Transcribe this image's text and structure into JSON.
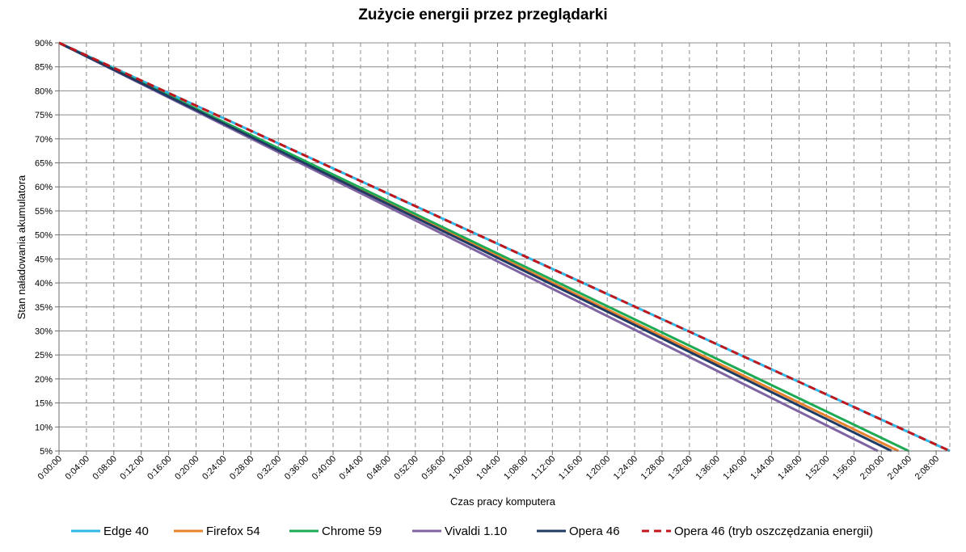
{
  "chart_data": {
    "type": "line",
    "title": "Zużycie energii przez przeglądarki",
    "xlabel": "Czas pracy komputera",
    "ylabel": "Stan naładowania akumulatora",
    "xlim_minutes": [
      0,
      130
    ],
    "ylim": [
      5,
      90
    ],
    "x_tick_labels": [
      "0:00:00",
      "0:04:00",
      "0:08:00",
      "0:12:00",
      "0:16:00",
      "0:20:00",
      "0:24:00",
      "0:28:00",
      "0:32:00",
      "0:36:00",
      "0:40:00",
      "0:44:00",
      "0:48:00",
      "0:52:00",
      "0:56:00",
      "1:00:00",
      "1:04:00",
      "1:08:00",
      "1:12:00",
      "1:16:00",
      "1:20:00",
      "1:24:00",
      "1:28:00",
      "1:32:00",
      "1:36:00",
      "1:40:00",
      "1:44:00",
      "1:48:00",
      "1:52:00",
      "1:56:00",
      "2:00:00",
      "2:04:00",
      "2:08:00"
    ],
    "y_tick_labels": [
      "90%",
      "85%",
      "80%",
      "75%",
      "70%",
      "65%",
      "60%",
      "55%",
      "50%",
      "45%",
      "40%",
      "35%",
      "30%",
      "25%",
      "20%",
      "15%",
      "10%",
      "5%"
    ],
    "grid": true,
    "legend_position": "bottom",
    "series": [
      {
        "name": "Edge 40",
        "color": "#31B6E8",
        "dash": false,
        "x": [
          "0:00:00",
          "2:10:00"
        ],
        "y": [
          90,
          5
        ]
      },
      {
        "name": "Firefox 54",
        "color": "#E8832D",
        "dash": false,
        "x": [
          "0:00:00",
          "2:02:30"
        ],
        "y": [
          90,
          5
        ]
      },
      {
        "name": "Chrome 59",
        "color": "#1EAA55",
        "dash": false,
        "x": [
          "0:00:00",
          "2:04:00"
        ],
        "y": [
          90,
          5
        ]
      },
      {
        "name": "Vivaldi 1.10",
        "color": "#8064A2",
        "dash": false,
        "x": [
          "0:00:00",
          "1:59:30"
        ],
        "y": [
          90,
          5
        ]
      },
      {
        "name": "Opera 46",
        "color": "#1F3B64",
        "dash": false,
        "x": [
          "0:00:00",
          "2:01:30"
        ],
        "y": [
          90,
          5
        ]
      },
      {
        "name": "Opera 46 (tryb oszczędzania energii)",
        "color": "#C0171C",
        "dash": true,
        "x": [
          "0:00:00",
          "2:10:00"
        ],
        "y": [
          90,
          5
        ]
      }
    ]
  }
}
